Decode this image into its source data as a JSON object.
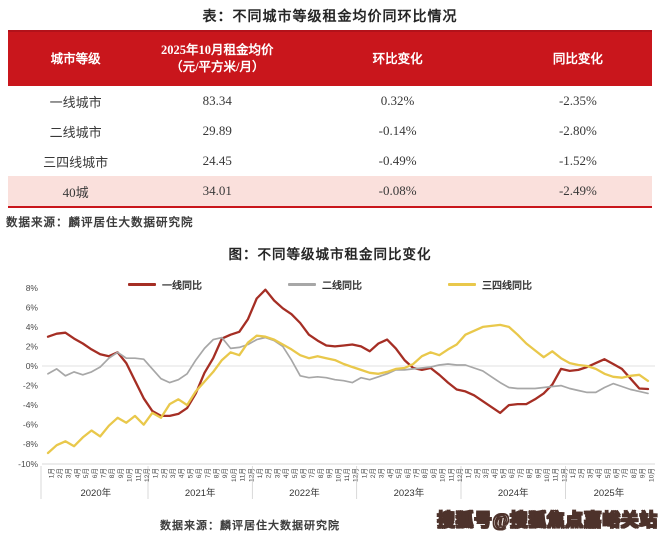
{
  "table": {
    "title": "表：不同城市等级租金均价同环比情况",
    "headers": {
      "tier": "城市等级",
      "price_line1": "2025年10月租金均价",
      "price_line2": "（元/平方米/月）",
      "mom": "环比变化",
      "yoy": "同比变化"
    },
    "rows": [
      {
        "tier": "一线城市",
        "price": "83.34",
        "mom": "0.32%",
        "yoy": "-2.35%",
        "highlight": false
      },
      {
        "tier": "二线城市",
        "price": "29.89",
        "mom": "-0.14%",
        "yoy": "-2.80%",
        "highlight": false
      },
      {
        "tier": "三四线城市",
        "price": "24.45",
        "mom": "-0.49%",
        "yoy": "-1.52%",
        "highlight": false
      },
      {
        "tier": "40城",
        "price": "34.01",
        "mom": "-0.08%",
        "yoy": "-2.49%",
        "highlight": true
      }
    ],
    "source": "数据来源：麟评居住大数据研究院",
    "header_color": "#C9161C",
    "highlight_color": "#FAE0DC"
  },
  "chart": {
    "title": "图：不同等级城市租金同比变化",
    "source": "数据来源：麟评居住大数据研究院"
  },
  "watermark": "搜狐号@搜狐焦点嘉峪关站",
  "chart_data": {
    "type": "line",
    "title": "图：不同等级城市租金同比变化",
    "unit": "%",
    "ylim": [
      -10,
      8
    ],
    "y_ticks": [
      "8%",
      "6%",
      "4%",
      "2%",
      "0%",
      "-2%",
      "-4%",
      "-6%",
      "-8%",
      "-10%"
    ],
    "grid": "zero-line-only",
    "legend_position": "top",
    "years": [
      {
        "label": "2020年",
        "months": [
          "1月",
          "2月",
          "3月",
          "4月",
          "5月",
          "6月",
          "7月",
          "8月",
          "9月",
          "10月",
          "11月",
          "12月"
        ]
      },
      {
        "label": "2021年",
        "months": [
          "1月",
          "2月",
          "3月",
          "4月",
          "5月",
          "6月",
          "7月",
          "8月",
          "9月",
          "10月",
          "11月",
          "12月"
        ]
      },
      {
        "label": "2022年",
        "months": [
          "1月",
          "2月",
          "3月",
          "4月",
          "5月",
          "6月",
          "7月",
          "8月",
          "9月",
          "10月",
          "11月",
          "12月"
        ]
      },
      {
        "label": "2023年",
        "months": [
          "1月",
          "2月",
          "3月",
          "4月",
          "5月",
          "6月",
          "7月",
          "8月",
          "9月",
          "10月",
          "11月",
          "12月"
        ]
      },
      {
        "label": "2024年",
        "months": [
          "1月",
          "2月",
          "3月",
          "4月",
          "5月",
          "6月",
          "7月",
          "8月",
          "9月",
          "10月",
          "11月",
          "12月"
        ]
      },
      {
        "label": "2025年",
        "months": [
          "1月",
          "2月",
          "3月",
          "4月",
          "5月",
          "6月",
          "7月",
          "8月",
          "9月",
          "10月"
        ]
      }
    ],
    "series": [
      {
        "name": "一线同比",
        "color": "#A52E24",
        "values": [
          3.0,
          3.3,
          3.4,
          2.8,
          2.3,
          1.7,
          1.2,
          1.0,
          1.4,
          0.3,
          -1.5,
          -3.3,
          -4.6,
          -5.1,
          -5.1,
          -4.9,
          -4.3,
          -2.8,
          -0.7,
          0.8,
          2.8,
          3.2,
          3.5,
          4.8,
          6.9,
          7.8,
          6.7,
          5.9,
          5.3,
          4.4,
          3.2,
          2.6,
          2.1,
          2.0,
          2.1,
          2.2,
          2.0,
          1.5,
          2.3,
          2.7,
          1.8,
          0.6,
          -0.2,
          -0.4,
          -0.2,
          -0.9,
          -1.7,
          -2.4,
          -2.6,
          -3.0,
          -3.6,
          -4.2,
          -4.8,
          -4.0,
          -3.9,
          -3.9,
          -3.4,
          -2.8,
          -1.9,
          -0.3,
          -0.5,
          -0.4,
          -0.1,
          0.3,
          0.7,
          0.2,
          -0.3,
          -1.3,
          -2.3,
          -2.35
        ]
      },
      {
        "name": "二线同比",
        "color": "#A7A7A7",
        "values": [
          -0.8,
          -0.3,
          -1.0,
          -0.6,
          -0.9,
          -0.6,
          -0.1,
          0.8,
          1.4,
          0.8,
          0.8,
          0.7,
          -0.3,
          -1.3,
          -1.7,
          -1.4,
          -0.8,
          0.6,
          1.8,
          2.7,
          2.9,
          1.8,
          1.9,
          2.2,
          2.7,
          2.9,
          2.6,
          2.0,
          0.6,
          -1.0,
          -1.2,
          -1.1,
          -1.2,
          -1.4,
          -1.5,
          -1.7,
          -1.2,
          -1.4,
          -1.1,
          -0.8,
          -0.4,
          -0.4,
          -0.3,
          -0.2,
          -0.1,
          0.1,
          0.2,
          0.1,
          0.1,
          -0.2,
          -0.5,
          -1.1,
          -1.7,
          -2.2,
          -2.3,
          -2.3,
          -2.3,
          -2.2,
          -2.1,
          -2.0,
          -2.3,
          -2.5,
          -2.7,
          -2.7,
          -2.2,
          -1.8,
          -2.1,
          -2.4,
          -2.6,
          -2.8
        ]
      },
      {
        "name": "三四线同比",
        "color": "#E9C84B",
        "values": [
          -8.9,
          -8.1,
          -7.7,
          -8.2,
          -7.3,
          -6.6,
          -7.2,
          -6.1,
          -5.3,
          -5.8,
          -5.1,
          -6.0,
          -4.8,
          -5.3,
          -3.9,
          -3.4,
          -4.0,
          -2.6,
          -1.6,
          -0.6,
          0.6,
          1.4,
          1.1,
          2.4,
          3.1,
          3.0,
          2.7,
          2.2,
          1.7,
          1.1,
          0.8,
          1.0,
          0.8,
          0.6,
          0.2,
          -0.1,
          -0.4,
          -0.7,
          -0.8,
          -0.6,
          -0.3,
          -0.2,
          0.2,
          1.0,
          1.4,
          1.1,
          1.7,
          2.2,
          3.2,
          3.6,
          4.0,
          4.1,
          4.2,
          4.0,
          3.2,
          2.3,
          1.6,
          0.9,
          1.5,
          0.8,
          0.3,
          0.1,
          0.0,
          -0.3,
          -0.8,
          -1.1,
          -1.2,
          -1.0,
          -0.9,
          -1.52
        ]
      }
    ]
  }
}
